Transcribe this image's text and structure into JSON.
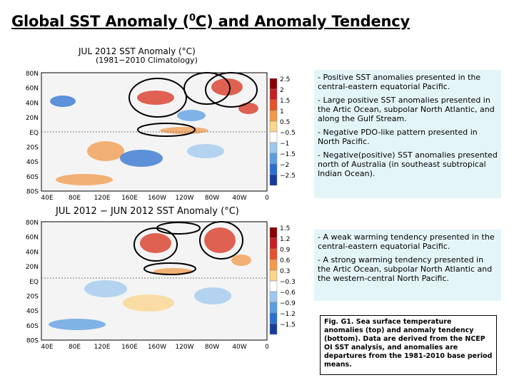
{
  "title": {
    "main": "Global SST Anomaly (",
    "sup": "0",
    "rest": "C) and Anomaly Tendency"
  },
  "map_top": {
    "title1": "JUL 2012 SST Anomaly (°C)",
    "title2": "(1981−2010 Climatology)",
    "lat_labels": [
      "80N",
      "60N",
      "40N",
      "20N",
      "EQ",
      "20S",
      "40S",
      "60S",
      "80S"
    ],
    "lon_labels": [
      "40E",
      "80E",
      "120E",
      "160E",
      "160W",
      "120W",
      "80W",
      "40W",
      "0"
    ],
    "scale_labels": [
      "2.5",
      "2",
      "1.5",
      "1",
      "0.5",
      "−0.5",
      "−1",
      "−1.5",
      "−2",
      "−2.5"
    ]
  },
  "map_bottom": {
    "title": "JUL 2012 − JUN 2012 SST Anomaly (°C)",
    "lat_labels": [
      "80N",
      "60N",
      "40N",
      "20N",
      "EQ",
      "20S",
      "40S",
      "60S",
      "80S"
    ],
    "lon_labels": [
      "40E",
      "80E",
      "120E",
      "160E",
      "160W",
      "120W",
      "80W",
      "40W",
      "0"
    ],
    "scale_labels": [
      "1.5",
      "1.2",
      "0.9",
      "0.6",
      "0.3",
      "−0.3",
      "−0.6",
      "−0.9",
      "−1.2",
      "−1.5"
    ]
  },
  "bullets_top": [
    "- Positive SST anomalies presented in the central-eastern equatorial Pacific.",
    "- Large positive SST anomalies presented in the Artic Ocean, subpolar North Atlantic, and along the Gulf Stream.",
    "- Negative PDO-like pattern presented in North Pacific.",
    "- Negative(positive) SST anomalies presented north of Australia (in southeast subtropical Indian Ocean)."
  ],
  "bullets_bottom": [
    "- A weak warming tendency presented in the central-eastern equatorial Pacific.",
    "- A strong warming tendency presented in the Artic Ocean, subpolar North Atlantic and the western-central North Pacific."
  ],
  "caption": "Fig. G1. Sea surface temperature anomalies (top) and anomaly tendency (bottom). Data are derived from the NCEP OI SST analysis, and anomalies are departures from the 1981-2010 base period means.",
  "colors": {
    "warm": "#d8301c",
    "cool": "#2a6fd0",
    "bullet_bg": "#e4f5f9",
    "land": "#f4f4f4"
  }
}
